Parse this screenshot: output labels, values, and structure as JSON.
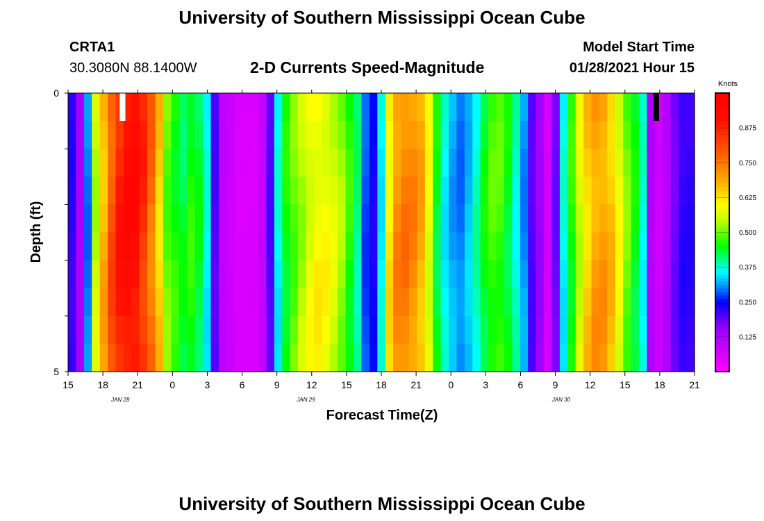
{
  "header": {
    "title": "University of Southern Mississippi Ocean Cube",
    "station_id": "CRTA1",
    "station_coords": "30.3080N 88.1400W",
    "chart_title": "2-D Currents Speed-Magnitude",
    "model_start_label": "Model Start Time",
    "model_start_value": "01/28/2021 Hour 15"
  },
  "footer": {
    "title": "University of Southern Mississippi Ocean Cube"
  },
  "chart_data": {
    "type": "heatmap",
    "title": "2-D Currents Speed-Magnitude",
    "xlabel": "Forecast Time(Z)",
    "ylabel": "Depth (ft)",
    "units_label": "Knots",
    "x_tick_labels": [
      "15",
      "18",
      "21",
      "0",
      "3",
      "6",
      "9",
      "12",
      "15",
      "18",
      "21",
      "0",
      "3",
      "6",
      "9",
      "12",
      "15",
      "18",
      "21"
    ],
    "date_labels": [
      {
        "label": "JAN  28",
        "at_hour": 4.5
      },
      {
        "label": "JAN  29",
        "at_hour": 20.5
      },
      {
        "label": "JAN  30",
        "at_hour": 42.5
      }
    ],
    "x_range_hours_from_start": [
      0,
      54
    ],
    "y_tick_labels": [
      "0",
      "5"
    ],
    "y_range_ft": [
      0,
      5
    ],
    "depth_bands_ft": [
      0,
      0.5,
      1.0,
      1.5,
      2.0,
      2.5,
      3.0,
      3.5,
      4.0,
      4.5,
      5.0
    ],
    "colorbar": {
      "range": [
        0,
        1
      ],
      "ticks": [
        "0.125",
        "0.250",
        "0.375",
        "0.500",
        "0.625",
        "0.750",
        "0.875"
      ],
      "tick_values": [
        0.125,
        0.25,
        0.375,
        0.5,
        0.625,
        0.75,
        0.875
      ],
      "stops": [
        {
          "v": 0.0,
          "color": "#ff00ff"
        },
        {
          "v": 0.15,
          "color": "#a000ff"
        },
        {
          "v": 0.25,
          "color": "#0000ff"
        },
        {
          "v": 0.32,
          "color": "#00b0ff"
        },
        {
          "v": 0.36,
          "color": "#00ffff"
        },
        {
          "v": 0.45,
          "color": "#00ff00"
        },
        {
          "v": 0.55,
          "color": "#ccff00"
        },
        {
          "v": 0.6,
          "color": "#ffff00"
        },
        {
          "v": 0.68,
          "color": "#ffb000"
        },
        {
          "v": 0.78,
          "color": "#ff6000"
        },
        {
          "v": 0.9,
          "color": "#ff1000"
        },
        {
          "v": 1.0,
          "color": "#ff0000"
        }
      ]
    },
    "speed_by_hour_knots": [
      0.22,
      0.14,
      0.3,
      0.55,
      0.68,
      0.8,
      0.88,
      0.92,
      0.92,
      0.85,
      0.76,
      0.65,
      0.5,
      0.46,
      0.43,
      0.46,
      0.43,
      0.36,
      0.2,
      0.1,
      0.08,
      0.06,
      0.06,
      0.06,
      0.09,
      0.2,
      0.36,
      0.45,
      0.5,
      0.54,
      0.58,
      0.6,
      0.59,
      0.56,
      0.52,
      0.46,
      0.4,
      0.28,
      0.24,
      0.36,
      0.62,
      0.72,
      0.74,
      0.72,
      0.68,
      0.58,
      0.44,
      0.36,
      0.32,
      0.3,
      0.33,
      0.38,
      0.44,
      0.48,
      0.48,
      0.44,
      0.38,
      0.31,
      0.2,
      0.15,
      0.07,
      0.18,
      0.36,
      0.46,
      0.56,
      0.65,
      0.7,
      0.7,
      0.66,
      0.58,
      0.5,
      0.44,
      0.37,
      0.12,
      0.08,
      0.12,
      0.18,
      0.22,
      0.22
    ],
    "surface_spikes": [
      {
        "hour": 4.7,
        "color": "#ffffff"
      },
      {
        "hour": 50.7,
        "color": "#000000"
      }
    ]
  }
}
